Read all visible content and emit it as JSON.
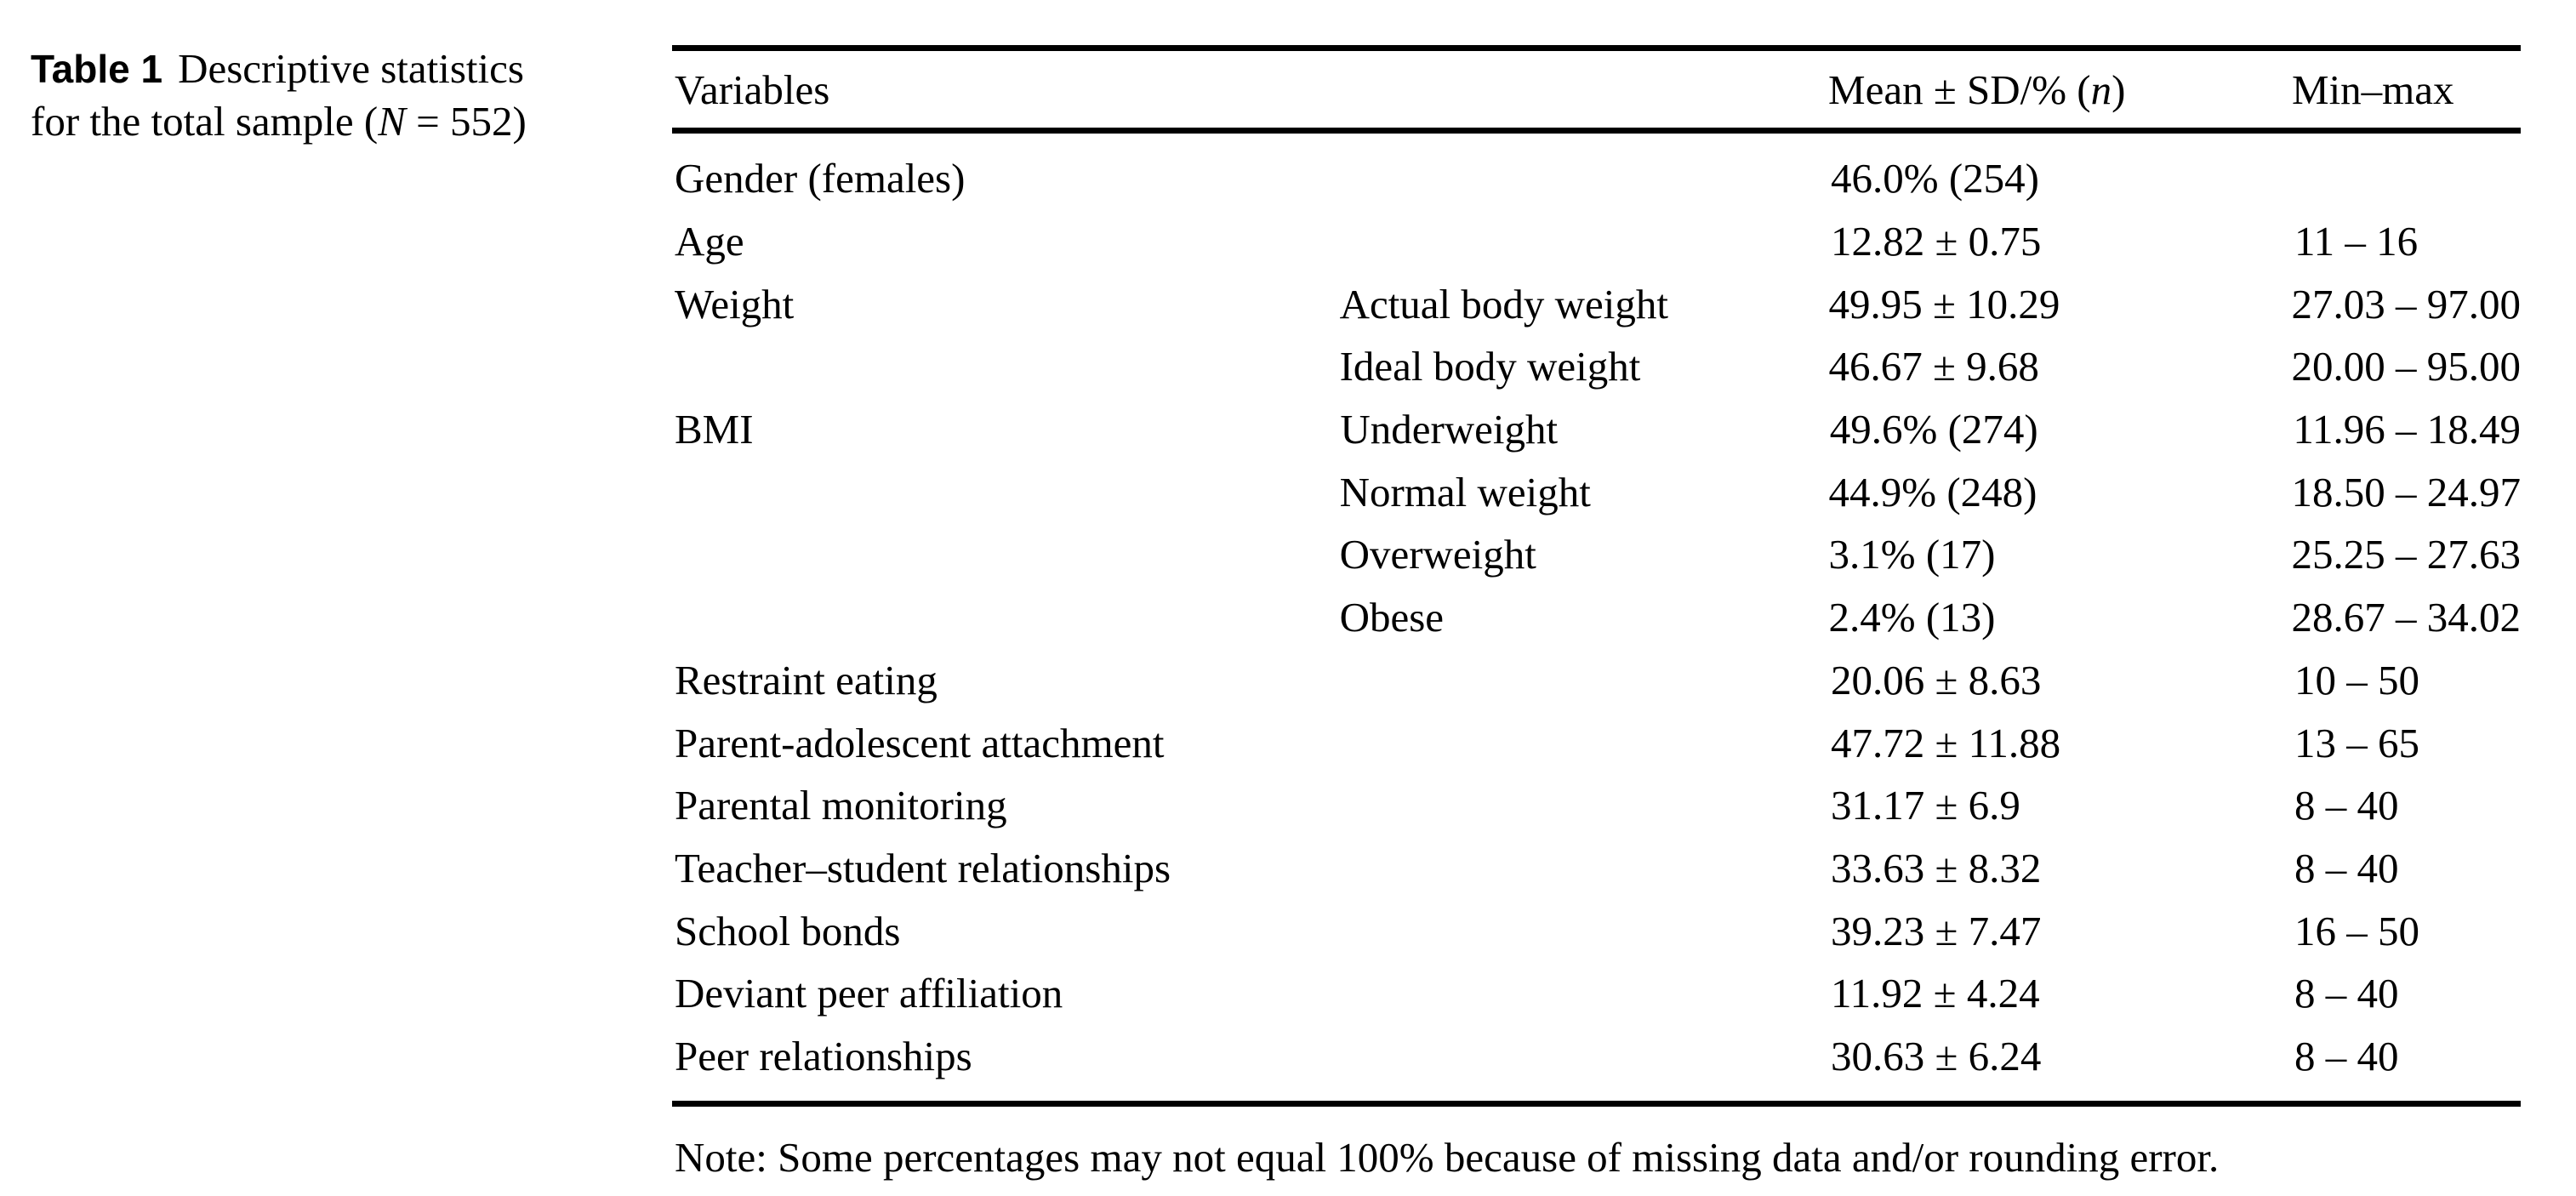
{
  "caption": {
    "label": "Table 1",
    "line1": "Descriptive statistics",
    "line2_pre": "for the total sample (",
    "line2_var": "N",
    "line2_post": " = 552)"
  },
  "table": {
    "header": {
      "variables": "Variables",
      "mean_pre": "Mean ± SD/% (",
      "mean_var": "n",
      "mean_post": ")",
      "minmax": "Min–max"
    },
    "rows": [
      {
        "label": "Gender (females)",
        "sublabel": "",
        "mean": "46.0% (254)",
        "minmax": ""
      },
      {
        "label": "Age",
        "sublabel": "",
        "mean": "12.82 ± 0.75",
        "minmax": "11 – 16"
      },
      {
        "label": "Weight",
        "sublabel": "Actual body weight",
        "mean": "49.95 ± 10.29",
        "minmax": "27.03 – 97.00"
      },
      {
        "label": "",
        "sublabel": "Ideal body weight",
        "mean": "46.67 ± 9.68",
        "minmax": "20.00 – 95.00"
      },
      {
        "label": "BMI",
        "sublabel": "Underweight",
        "mean": "49.6% (274)",
        "minmax": "11.96 – 18.49"
      },
      {
        "label": "",
        "sublabel": "Normal weight",
        "mean": "44.9% (248)",
        "minmax": "18.50 – 24.97"
      },
      {
        "label": "",
        "sublabel": "Overweight",
        "mean": "3.1% (17)",
        "minmax": "25.25 – 27.63"
      },
      {
        "label": "",
        "sublabel": "Obese",
        "mean": "2.4% (13)",
        "minmax": "28.67 – 34.02"
      },
      {
        "label": "Restraint eating",
        "sublabel": "",
        "mean": "20.06 ± 8.63",
        "minmax": "10 – 50"
      },
      {
        "label": "Parent-adolescent attachment",
        "sublabel": "",
        "mean": "47.72 ± 11.88",
        "minmax": "13 – 65"
      },
      {
        "label": "Parental monitoring",
        "sublabel": "",
        "mean": "31.17 ± 6.9",
        "minmax": "8 – 40"
      },
      {
        "label": "Teacher–student relationships",
        "sublabel": "",
        "mean": "33.63 ± 8.32",
        "minmax": "8 – 40"
      },
      {
        "label": "School bonds",
        "sublabel": "",
        "mean": "39.23 ± 7.47",
        "minmax": "16 – 50"
      },
      {
        "label": "Deviant peer affiliation",
        "sublabel": "",
        "mean": "11.92 ± 4.24",
        "minmax": "8 – 40"
      },
      {
        "label": "Peer relationships",
        "sublabel": "",
        "mean": "30.63 ± 6.24",
        "minmax": "8 – 40"
      }
    ]
  },
  "note": "Note: Some percentages may not equal 100% because of missing data and/or rounding error."
}
